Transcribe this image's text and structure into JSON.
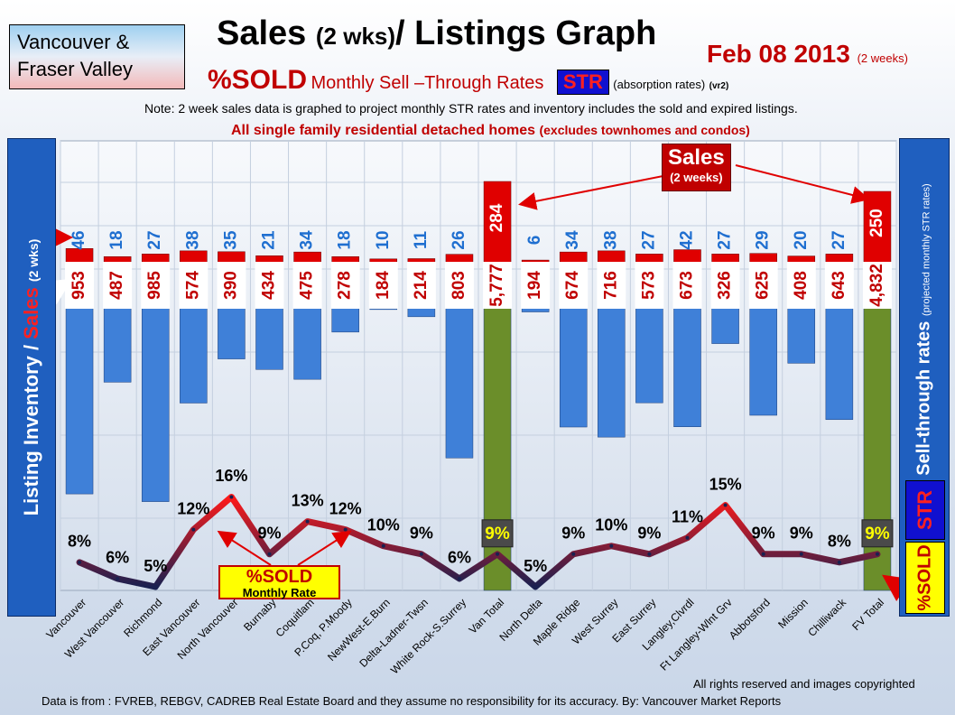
{
  "header": {
    "region": "Vancouver & Fraser Valley",
    "title": "Sales",
    "title_small": "(2 wks)",
    "title_rest": "/ Listings Graph",
    "date": "Feb 08 2013",
    "date_small": "(2 weeks)",
    "sold_label": "%SOLD",
    "monthly_str": "Monthly Sell –Through Rates",
    "str_badge": "STR",
    "absorption": "(absorption rates)",
    "version": "(vr2)",
    "note": "Note: 2 week sales data is graphed to project monthly STR rates and inventory includes the sold and expired listings.",
    "subnote": "All single family residential detached homes",
    "subnote_small": "(excludes townhomes and condos)"
  },
  "left_axis": {
    "label_part1": "Listing Inventory",
    "label_sep": " / ",
    "label_sales": "Sales",
    "label_small": "(2 wks)"
  },
  "right_axis": {
    "label": "Sell-through rates",
    "label_small": "(projected monthly STR rates)",
    "str_badge": "STR",
    "sold_badge": "%SOLD"
  },
  "callouts": {
    "sales": "Sales",
    "sales_small": "(2 weeks)",
    "sold": "%SOLD",
    "sold_small": "Monthly Rate"
  },
  "footer": {
    "copyright": "All rights reserved and  images copyrighted",
    "source": "Data is  from : FVREB, REBGV, CADREB Real Estate Board and they assume no responsibility  for its accuracy. By: Vancouver Market Reports"
  },
  "colors": {
    "sales_bar": "#e00000",
    "listing_bar": "#3f80d8",
    "total_bar": "#6b8e2a",
    "label_red": "#c00000",
    "label_blue": "#1f6fd0"
  },
  "chart_data": {
    "type": "bar",
    "categories": [
      "Vancouver",
      "West Vancouver",
      "Richmond",
      "East Vancouver",
      "North Vancouver",
      "Burnaby",
      "Coquitlam",
      "P.Coq, P.Moody",
      "NewWest-E.Burn",
      "Delta-Ladner-Twsn",
      "White Rock-S.Surrey",
      "Van Total",
      "North Delta",
      "Maple Ridge",
      "West Surrey",
      "East Surrey",
      "Langley,Clvrdl",
      "Ft Langley-Wlnt Grv",
      "Abbotsford",
      "Mission",
      "Chilliwack",
      "FV Total"
    ],
    "series": [
      {
        "name": "Sales",
        "values": [
          46,
          18,
          27,
          38,
          35,
          21,
          34,
          18,
          10,
          11,
          26,
          284,
          6,
          34,
          38,
          27,
          42,
          27,
          29,
          20,
          27,
          250
        ],
        "labels": [
          "46",
          "18",
          "27",
          "38",
          "35",
          "21",
          "34",
          "18",
          "10",
          "11",
          "26",
          "284",
          "6",
          "34",
          "38",
          "27",
          "42",
          "27",
          "29",
          "20",
          "27",
          "250"
        ]
      },
      {
        "name": "Listing Inventory",
        "values": [
          953,
          487,
          985,
          574,
          390,
          434,
          475,
          278,
          184,
          214,
          803,
          5777,
          194,
          674,
          716,
          573,
          673,
          326,
          625,
          408,
          643,
          4832
        ],
        "labels": [
          "953",
          "487",
          "985",
          "574",
          "390",
          "434",
          "475",
          "278",
          "184",
          "214",
          "803",
          "5,777",
          "194",
          "674",
          "716",
          "573",
          "673",
          "326",
          "625",
          "408",
          "643",
          "4,832"
        ]
      },
      {
        "name": "%SOLD",
        "values": [
          8,
          6,
          5,
          12,
          16,
          9,
          13,
          12,
          10,
          9,
          6,
          9,
          5,
          9,
          10,
          9,
          11,
          15,
          9,
          9,
          8,
          9
        ],
        "labels": [
          "8%",
          "6%",
          "5%",
          "12%",
          "16%",
          "9%",
          "13%",
          "12%",
          "10%",
          "9%",
          "6%",
          "9%",
          "5%",
          "9%",
          "10%",
          "9%",
          "11%",
          "15%",
          "9%",
          "9%",
          "8%",
          "9%"
        ]
      }
    ],
    "totals": [
      "Van Total",
      "FV Total"
    ],
    "grid": true
  }
}
